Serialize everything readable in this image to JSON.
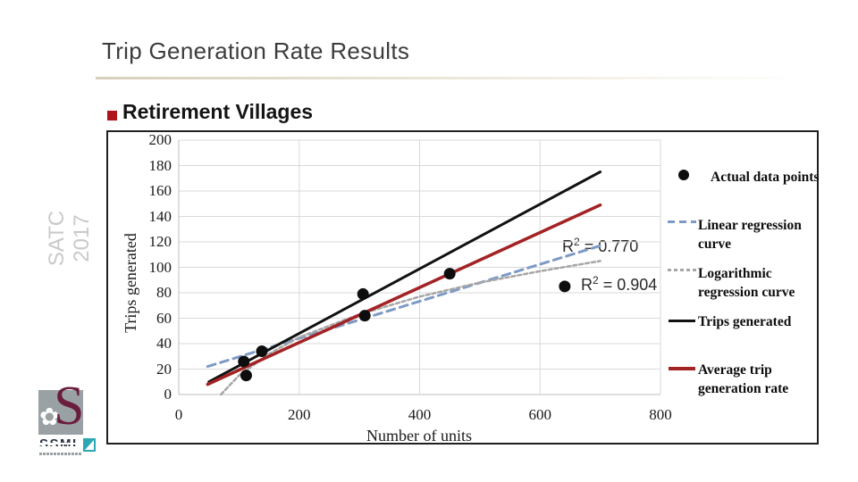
{
  "slide": {
    "title": "Trip Generation Rate Results",
    "heading": "Retirement Villages",
    "watermark": "SATC 2017",
    "logo": {
      "letter": "S",
      "brand": "SSML"
    },
    "colors": {
      "bullet_red": "#b0131a",
      "logo_maroon": "#6b1d3d",
      "logo_gray": "#9aa1a5",
      "logo_teal": "#2ba7b3",
      "watermark_gray": "#c9c9c9"
    }
  },
  "chart_data": {
    "type": "scatter",
    "xlabel": "Number of units",
    "ylabel": "Trips generated",
    "xlim": [
      0,
      800
    ],
    "ylim": [
      0,
      200
    ],
    "x_ticks": [
      0,
      200,
      400,
      600,
      800
    ],
    "y_ticks": [
      0,
      20,
      40,
      60,
      80,
      100,
      120,
      140,
      160,
      180,
      200
    ],
    "grid": true,
    "legend_position": "right",
    "grid_color": "#d9d9d9",
    "axis_color": "#bfbfbf",
    "scatter": {
      "name": "Actual data points",
      "color": "#0d0d0d",
      "points": [
        [
          108,
          26
        ],
        [
          112,
          15
        ],
        [
          138,
          34
        ],
        [
          306,
          79
        ],
        [
          309,
          62
        ],
        [
          450,
          95
        ],
        [
          641,
          85
        ]
      ]
    },
    "series": [
      {
        "name": "Linear regression curve",
        "style": "dashed",
        "color": "#7d9ac6",
        "points": [
          [
            48,
            22
          ],
          [
            700,
            117
          ]
        ]
      },
      {
        "name": "Logarithmic regression curve",
        "style": "dotted",
        "color": "#a6a6a6",
        "points": [
          [
            70,
            0
          ],
          [
            100,
            15
          ],
          [
            150,
            32
          ],
          [
            200,
            45
          ],
          [
            300,
            63
          ],
          [
            400,
            77
          ],
          [
            500,
            88
          ],
          [
            600,
            97
          ],
          [
            700,
            105
          ]
        ]
      },
      {
        "name": "Trips generated",
        "style": "solid",
        "color": "#111111",
        "points": [
          [
            50,
            10
          ],
          [
            700,
            175
          ]
        ]
      },
      {
        "name": "Average trip generation rate",
        "style": "solid",
        "color": "#a32224",
        "points": [
          [
            48,
            8
          ],
          [
            700,
            149
          ]
        ]
      }
    ],
    "annotations": [
      {
        "base": "R",
        "sup": "2",
        "rest": " = 0.770"
      },
      {
        "base": "R",
        "sup": "2",
        "rest": " = 0.904"
      }
    ]
  }
}
